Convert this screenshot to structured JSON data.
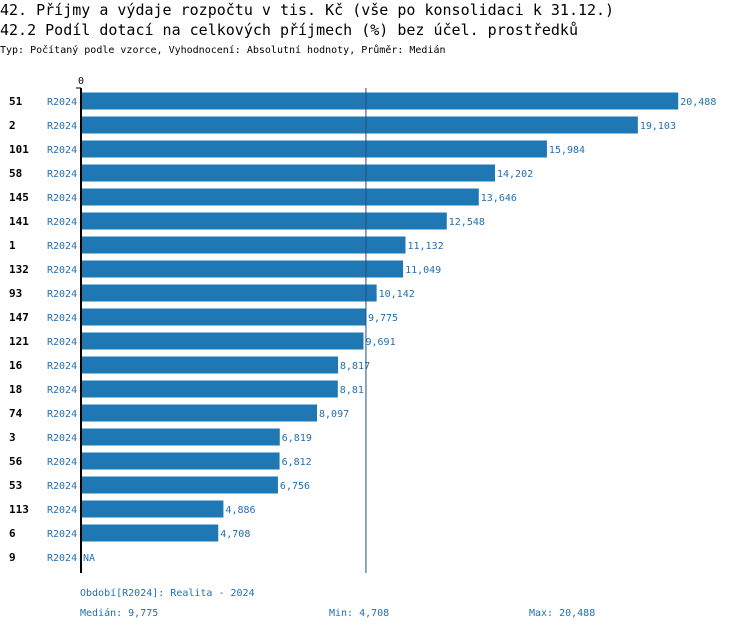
{
  "header": {
    "title": "42. Příjmy a výdaje rozpočtu v tis. Kč (vše po konsolidaci k 31.12.)",
    "subtitle": "42.2 Podíl dotací na celkových příjmech (%) bez účel. prostředků",
    "type_line": "Typ: Počítaný podle vzorce, Vyhodnocení: Absolutní hodnoty, Průměr: Medián"
  },
  "colors": {
    "bar": "#1f77b4",
    "period_text": "#1f6fb4",
    "value_text": "#1f6fb4",
    "axis": "#000000"
  },
  "chart_data": {
    "type": "bar",
    "orientation": "horizontal",
    "x_tick_label": "0",
    "median_line": 9.775,
    "categories": [
      "51",
      "2",
      "101",
      "58",
      "145",
      "141",
      "1",
      "132",
      "93",
      "147",
      "121",
      "16",
      "18",
      "74",
      "3",
      "56",
      "53",
      "113",
      "6",
      "9"
    ],
    "periods": [
      "R2024",
      "R2024",
      "R2024",
      "R2024",
      "R2024",
      "R2024",
      "R2024",
      "R2024",
      "R2024",
      "R2024",
      "R2024",
      "R2024",
      "R2024",
      "R2024",
      "R2024",
      "R2024",
      "R2024",
      "R2024",
      "R2024",
      "R2024"
    ],
    "values": [
      20.488,
      19.103,
      15.984,
      14.202,
      13.646,
      12.548,
      11.132,
      11.049,
      10.142,
      9.775,
      9.691,
      8.817,
      8.81,
      8.097,
      6.819,
      6.812,
      6.756,
      4.886,
      4.708,
      null
    ],
    "value_labels": [
      "20,488",
      "19,103",
      "15,984",
      "14,202",
      "13,646",
      "12,548",
      "11,132",
      "11,049",
      "10,142",
      "9,775",
      "9,691",
      "8,817",
      "8,81",
      "8,097",
      "6,819",
      "6,812",
      "6,756",
      "4,886",
      "4,708",
      "NA"
    ]
  },
  "footer": {
    "period": "Období[R2024]: Realita - 2024",
    "median": "Medián: 9,775",
    "min": "Min: 4,708",
    "max": "Max: 20,488"
  }
}
